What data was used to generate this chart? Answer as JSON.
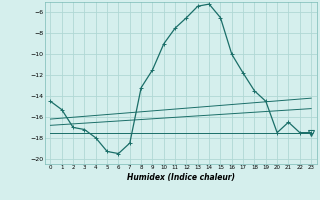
{
  "xlabel": "Humidex (Indice chaleur)",
  "background_color": "#d5efed",
  "grid_color": "#b0d8d5",
  "line_color": "#1a6e68",
  "xlim": [
    -0.5,
    23.5
  ],
  "ylim": [
    -20.5,
    -5.0
  ],
  "yticks": [
    -20,
    -18,
    -16,
    -14,
    -12,
    -10,
    -8,
    -6
  ],
  "xticks": [
    0,
    1,
    2,
    3,
    4,
    5,
    6,
    7,
    8,
    9,
    10,
    11,
    12,
    13,
    14,
    15,
    16,
    17,
    18,
    19,
    20,
    21,
    22,
    23
  ],
  "main_x": [
    0,
    1,
    2,
    3,
    4,
    5,
    6,
    7,
    8,
    9,
    10,
    11,
    12,
    13,
    14,
    15,
    16,
    17,
    18,
    19,
    20,
    21,
    22,
    23
  ],
  "main_y": [
    -14.5,
    -15.3,
    -17.0,
    -17.2,
    -18.0,
    -19.3,
    -19.5,
    -18.5,
    -13.2,
    -11.5,
    -9.0,
    -7.5,
    -6.5,
    -5.4,
    -5.2,
    -6.5,
    -10.0,
    -11.8,
    -13.5,
    -14.5,
    -17.5,
    -16.5,
    -17.5,
    -17.5
  ],
  "line2_x": [
    0,
    23
  ],
  "line2_y": [
    -16.2,
    -14.2
  ],
  "line3_x": [
    0,
    23
  ],
  "line3_y": [
    -16.8,
    -15.2
  ],
  "line4_x": [
    0,
    23
  ],
  "line4_y": [
    -17.5,
    -17.5
  ],
  "triangle_x": 23,
  "triangle_y": -17.5
}
